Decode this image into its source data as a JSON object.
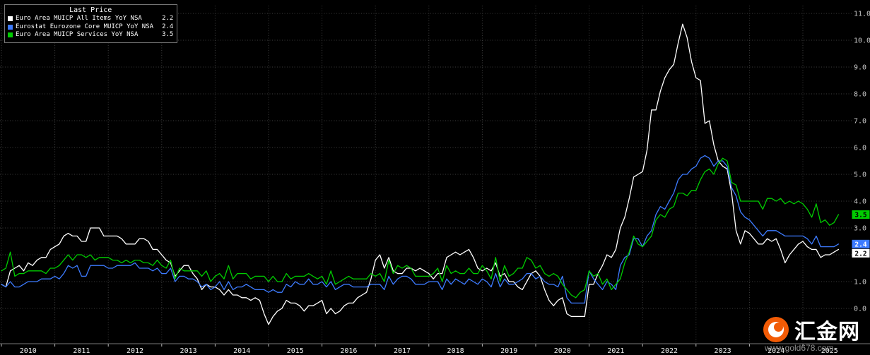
{
  "legend": {
    "title": "Last Price",
    "series": [
      {
        "label": "Euro Area MUICP All Items YoY NSA",
        "value": "2.2"
      },
      {
        "label": "Eurostat Eurozone Core MUICP YoY NSA",
        "value": "2.4"
      },
      {
        "label": "Euro Area MUICP Services YoY NSA",
        "value": "3.5"
      }
    ]
  },
  "watermark": {
    "site_name": "汇金网",
    "site_url": "www.gold678.com",
    "logo_color": "#f25b05"
  },
  "colors": {
    "background": "#000000",
    "grid": "#3d3d3d",
    "axis_text": "#c8c8c8"
  },
  "chart_data": {
    "type": "line",
    "title": "",
    "x_unit": "month",
    "x_start": "2010-01",
    "x_end": "2025-09",
    "x_tick_labels": [
      "2010",
      "2011",
      "2012",
      "2013",
      "2014",
      "2015",
      "2016",
      "2017",
      "2018",
      "2019",
      "2020",
      "2021",
      "2022",
      "2023",
      "2024",
      "2025"
    ],
    "y_ticks": [
      0,
      1,
      2,
      3,
      4,
      5,
      6,
      7,
      8,
      9,
      10,
      11
    ],
    "ylim": [
      -1.3,
      11.3
    ],
    "grid": true,
    "legend_position": "top-left",
    "series": [
      {
        "name": "Euro Area MUICP All Items YoY NSA",
        "color": "#ffffff",
        "last": 2.2,
        "values": [
          0.9,
          0.8,
          1.4,
          1.5,
          1.6,
          1.4,
          1.7,
          1.6,
          1.8,
          1.9,
          1.9,
          2.2,
          2.3,
          2.4,
          2.7,
          2.8,
          2.7,
          2.7,
          2.5,
          2.5,
          3.0,
          3.0,
          3.0,
          2.7,
          2.7,
          2.7,
          2.7,
          2.6,
          2.4,
          2.4,
          2.4,
          2.6,
          2.6,
          2.5,
          2.2,
          2.2,
          2.0,
          1.8,
          1.7,
          1.2,
          1.4,
          1.6,
          1.6,
          1.3,
          1.1,
          0.7,
          0.9,
          0.8,
          0.8,
          0.7,
          0.5,
          0.7,
          0.5,
          0.5,
          0.4,
          0.4,
          0.3,
          0.4,
          0.3,
          -0.2,
          -0.6,
          -0.3,
          -0.1,
          0.0,
          0.3,
          0.2,
          0.2,
          0.1,
          -0.1,
          0.1,
          0.1,
          0.2,
          0.3,
          -0.2,
          0.0,
          -0.2,
          -0.1,
          0.1,
          0.2,
          0.2,
          0.4,
          0.5,
          0.6,
          1.1,
          1.8,
          2.0,
          1.5,
          1.9,
          1.4,
          1.3,
          1.3,
          1.5,
          1.5,
          1.4,
          1.5,
          1.4,
          1.3,
          1.1,
          1.3,
          1.3,
          1.9,
          2.0,
          2.1,
          2.0,
          2.1,
          2.2,
          1.9,
          1.5,
          1.4,
          1.5,
          1.4,
          1.7,
          1.2,
          1.3,
          1.0,
          1.0,
          0.8,
          0.7,
          1.0,
          1.3,
          1.4,
          1.2,
          0.7,
          0.3,
          0.1,
          0.3,
          0.4,
          -0.2,
          -0.3,
          -0.3,
          -0.3,
          -0.3,
          0.9,
          0.9,
          1.3,
          1.6,
          2.0,
          1.9,
          2.2,
          3.0,
          3.4,
          4.1,
          4.9,
          5.0,
          5.1,
          5.9,
          7.4,
          7.4,
          8.1,
          8.6,
          8.9,
          9.1,
          9.9,
          10.6,
          10.1,
          9.2,
          8.6,
          8.5,
          6.9,
          7.0,
          6.1,
          5.5,
          5.3,
          5.2,
          4.3,
          2.9,
          2.4,
          2.9,
          2.8,
          2.6,
          2.4,
          2.4,
          2.6,
          2.5,
          2.6,
          2.2,
          1.7,
          2.0,
          2.2,
          2.4,
          2.5,
          2.3,
          2.2,
          2.2,
          1.9,
          2.0,
          2.0,
          2.1,
          2.2
        ]
      },
      {
        "name": "Eurostat Eurozone Core MUICP YoY NSA",
        "color": "#3d7bff",
        "last": 2.4,
        "values": [
          0.9,
          0.8,
          1.0,
          0.8,
          0.8,
          0.9,
          1.0,
          1.0,
          1.0,
          1.1,
          1.1,
          1.1,
          1.2,
          1.1,
          1.3,
          1.6,
          1.5,
          1.6,
          1.2,
          1.2,
          1.6,
          1.6,
          1.6,
          1.6,
          1.5,
          1.5,
          1.6,
          1.6,
          1.6,
          1.6,
          1.7,
          1.5,
          1.5,
          1.5,
          1.4,
          1.5,
          1.3,
          1.3,
          1.5,
          1.0,
          1.2,
          1.2,
          1.1,
          1.1,
          1.0,
          0.8,
          0.9,
          0.7,
          0.8,
          1.0,
          0.7,
          1.0,
          0.7,
          0.8,
          0.8,
          0.9,
          0.8,
          0.7,
          0.7,
          0.7,
          0.6,
          0.7,
          0.6,
          0.6,
          0.9,
          0.8,
          1.0,
          0.9,
          0.9,
          1.1,
          0.9,
          0.9,
          1.0,
          0.8,
          1.0,
          0.7,
          0.8,
          0.9,
          0.9,
          0.8,
          0.8,
          0.8,
          0.8,
          0.9,
          0.9,
          0.9,
          0.7,
          1.2,
          0.9,
          1.1,
          1.2,
          1.2,
          1.1,
          0.9,
          0.9,
          0.9,
          1.0,
          1.0,
          1.0,
          0.7,
          1.1,
          0.9,
          1.1,
          1.0,
          0.9,
          1.1,
          1.0,
          0.9,
          1.1,
          1.0,
          0.8,
          1.3,
          0.8,
          1.1,
          0.9,
          0.9,
          1.0,
          1.1,
          1.3,
          1.3,
          1.1,
          1.2,
          1.0,
          0.9,
          0.9,
          0.8,
          1.2,
          0.4,
          0.2,
          0.2,
          0.2,
          0.2,
          1.4,
          1.1,
          0.9,
          0.7,
          1.0,
          0.9,
          0.7,
          1.6,
          1.9,
          2.0,
          2.6,
          2.6,
          2.3,
          2.7,
          2.9,
          3.5,
          3.8,
          3.7,
          4.0,
          4.3,
          4.8,
          5.0,
          5.0,
          5.2,
          5.3,
          5.6,
          5.7,
          5.6,
          5.3,
          5.5,
          5.5,
          5.3,
          4.5,
          4.2,
          3.6,
          3.4,
          3.3,
          3.1,
          2.9,
          2.7,
          2.9,
          2.9,
          2.9,
          2.8,
          2.7,
          2.7,
          2.7,
          2.7,
          2.7,
          2.6,
          2.4,
          2.7,
          2.3,
          2.3,
          2.3,
          2.3,
          2.4
        ]
      },
      {
        "name": "Euro Area MUICP Services YoY NSA",
        "color": "#00cc00",
        "last": 3.5,
        "values": [
          1.4,
          1.5,
          2.1,
          1.2,
          1.3,
          1.3,
          1.4,
          1.4,
          1.4,
          1.4,
          1.3,
          1.5,
          1.5,
          1.6,
          1.8,
          2.0,
          1.8,
          2.0,
          2.0,
          1.9,
          2.0,
          1.8,
          1.9,
          1.9,
          1.9,
          1.8,
          1.8,
          1.7,
          1.8,
          1.7,
          1.8,
          1.8,
          1.7,
          1.7,
          1.6,
          1.8,
          1.6,
          1.5,
          1.8,
          1.1,
          1.5,
          1.4,
          1.4,
          1.4,
          1.4,
          1.2,
          1.4,
          1.0,
          1.2,
          1.3,
          1.1,
          1.6,
          1.1,
          1.3,
          1.3,
          1.3,
          1.1,
          1.2,
          1.2,
          1.2,
          1.0,
          1.2,
          1.0,
          1.0,
          1.3,
          1.1,
          1.2,
          1.2,
          1.2,
          1.3,
          1.2,
          1.1,
          1.2,
          0.9,
          1.4,
          0.9,
          1.0,
          1.1,
          1.2,
          1.1,
          1.1,
          1.1,
          1.1,
          1.3,
          1.2,
          1.3,
          1.0,
          1.8,
          1.3,
          1.6,
          1.5,
          1.6,
          1.5,
          1.2,
          1.2,
          1.2,
          1.2,
          1.3,
          1.5,
          1.0,
          1.6,
          1.3,
          1.4,
          1.3,
          1.3,
          1.5,
          1.3,
          1.3,
          1.6,
          1.4,
          1.1,
          1.9,
          1.0,
          1.6,
          1.2,
          1.3,
          1.5,
          1.5,
          1.9,
          1.8,
          1.5,
          1.6,
          1.3,
          1.2,
          1.3,
          1.2,
          0.9,
          0.7,
          0.5,
          0.4,
          0.6,
          0.7,
          1.4,
          1.2,
          1.3,
          0.9,
          1.1,
          0.7,
          0.9,
          1.1,
          1.7,
          2.1,
          2.7,
          2.4,
          2.3,
          2.5,
          2.7,
          3.3,
          3.5,
          3.4,
          3.7,
          3.8,
          4.3,
          4.3,
          4.2,
          4.4,
          4.4,
          4.8,
          5.1,
          5.2,
          5.0,
          5.4,
          5.6,
          5.5,
          4.7,
          4.6,
          4.0,
          4.0,
          4.0,
          4.0,
          4.0,
          3.7,
          4.1,
          4.1,
          4.0,
          4.1,
          3.9,
          4.0,
          3.9,
          4.0,
          3.9,
          3.7,
          3.4,
          3.9,
          3.2,
          3.3,
          3.1,
          3.2,
          3.5
        ]
      }
    ],
    "last_price_badges": [
      {
        "value": "3.5",
        "color": "#00cc00",
        "text_color": "#000000"
      },
      {
        "value": "2.4",
        "color": "#3d7bff",
        "text_color": "#ffffff"
      },
      {
        "value": "2.2",
        "color": "#ffffff",
        "text_color": "#000000"
      }
    ]
  }
}
